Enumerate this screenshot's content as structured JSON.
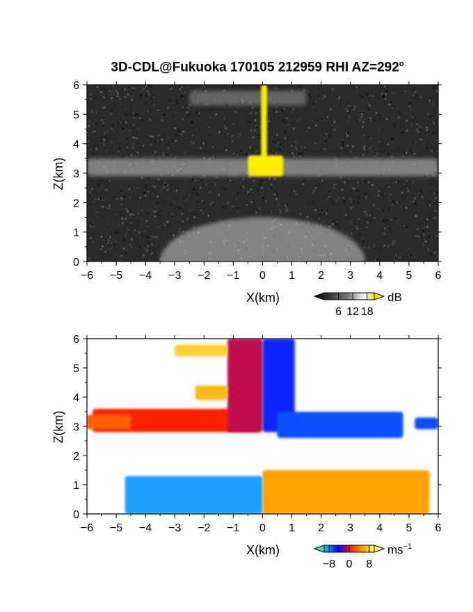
{
  "title_main": "3D-CDL@Fukuoka 170105 212959 RHI AZ=292",
  "title_deg": "o",
  "chart_data": [
    {
      "type": "heatmap",
      "name": "reflectivity",
      "xlabel": "X(km)",
      "ylabel": "Z(km)",
      "xlim": [
        -6,
        6
      ],
      "ylim": [
        0,
        6
      ],
      "xticks": [
        "-6",
        "-5",
        "-4",
        "-3",
        "-2",
        "-1",
        "0",
        "1",
        "2",
        "3",
        "4",
        "5",
        "6"
      ],
      "yticks": [
        "0",
        "1",
        "2",
        "3",
        "4",
        "5",
        "6"
      ],
      "colorbar": {
        "unit": "dB",
        "ticks": [
          "6",
          "12",
          "18"
        ],
        "range": [
          0,
          21
        ]
      },
      "features": [
        {
          "label": "noise background",
          "x": [
            -6,
            6
          ],
          "z": [
            0,
            6
          ],
          "value_db": 3
        },
        {
          "label": "cloud layer",
          "x": [
            -6,
            6
          ],
          "z": [
            2.9,
            3.5
          ],
          "value_db": 11
        },
        {
          "label": "upper layer",
          "x": [
            -2.5,
            1.5
          ],
          "z": [
            5.3,
            5.8
          ],
          "value_db": 8
        },
        {
          "label": "strong echo column",
          "x": [
            -0.05,
            0.15
          ],
          "z": [
            3.5,
            6.0
          ],
          "value_db": 20
        },
        {
          "label": "strong echo core",
          "x": [
            -0.5,
            0.7
          ],
          "z": [
            2.9,
            3.6
          ],
          "value_db": 20
        },
        {
          "label": "near-ground fan",
          "x": [
            -3.5,
            3.5
          ],
          "z": [
            0,
            1.5
          ],
          "value_db": 14
        }
      ]
    },
    {
      "type": "heatmap",
      "name": "doppler velocity",
      "xlabel": "X(km)",
      "ylabel": "Z(km)",
      "xlim": [
        -6,
        6
      ],
      "ylim": [
        0,
        6
      ],
      "xticks": [
        "-6",
        "-5",
        "-4",
        "-3",
        "-2",
        "-1",
        "0",
        "1",
        "2",
        "3",
        "4",
        "5",
        "6"
      ],
      "yticks": [
        "0",
        "1",
        "2",
        "3",
        "4",
        "5",
        "6"
      ],
      "colorbar": {
        "unit": "ms",
        "unit_exp": "−1",
        "ticks": [
          "−8",
          "0",
          "8"
        ],
        "range": [
          -10,
          10
        ]
      },
      "features": [
        {
          "label": "west layer",
          "x": [
            -5.8,
            -0.1
          ],
          "z": [
            2.8,
            3.6
          ],
          "value_ms": 2
        },
        {
          "label": "west layer edge",
          "x": [
            -6,
            -4.5
          ],
          "z": [
            2.9,
            3.4
          ],
          "value_ms": 4
        },
        {
          "label": "core west",
          "x": [
            -1.2,
            0.0
          ],
          "z": [
            2.8,
            6.0
          ],
          "value_ms": 1
        },
        {
          "label": "core east",
          "x": [
            0.0,
            1.1
          ],
          "z": [
            2.8,
            6.0
          ],
          "value_ms": -3
        },
        {
          "label": "east layer",
          "x": [
            0.5,
            4.8
          ],
          "z": [
            2.6,
            3.5
          ],
          "value_ms": -4
        },
        {
          "label": "east far patch",
          "x": [
            5.2,
            6.0
          ],
          "z": [
            2.9,
            3.3
          ],
          "value_ms": -4
        },
        {
          "label": "upper west patch",
          "x": [
            -3.0,
            -1.2
          ],
          "z": [
            5.4,
            5.8
          ],
          "value_ms": 8
        },
        {
          "label": "mid west patch",
          "x": [
            -2.3,
            -1.2
          ],
          "z": [
            3.9,
            4.4
          ],
          "value_ms": 7
        },
        {
          "label": "low west",
          "x": [
            -4.7,
            0.0
          ],
          "z": [
            0.0,
            1.3
          ],
          "value_ms": -6
        },
        {
          "label": "low east",
          "x": [
            0.0,
            5.7
          ],
          "z": [
            0.0,
            1.5
          ],
          "value_ms": 6
        }
      ]
    }
  ]
}
